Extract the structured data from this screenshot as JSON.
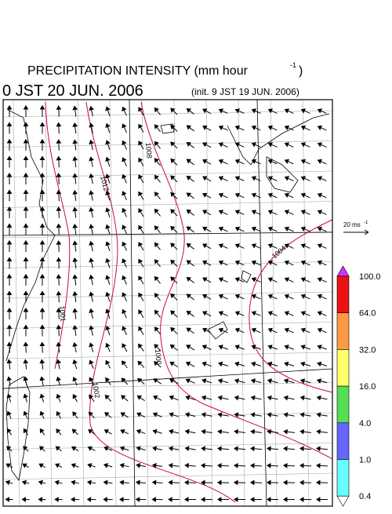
{
  "header": {
    "title": "PRECIPITATION INTENSITY (mm hour",
    "title_exponent": "-1",
    "title_close": ")",
    "valid_time": "0 JST 20 JUN. 2006",
    "init_time": "(init. 9 JST 19 JUN. 2006)"
  },
  "map": {
    "contour_labels": [
      "1012",
      "1008",
      "1004",
      "1001",
      "1000",
      "1002"
    ]
  },
  "wind_legend": {
    "label": "20 ms",
    "exponent": "-1"
  },
  "colorbar": {
    "labels": [
      "100.0",
      "64.0",
      "32.0",
      "16.0",
      "4.0",
      "1.0",
      "0.4"
    ],
    "colors": [
      "#cc33ff",
      "#ee1111",
      "#ff9944",
      "#ffff66",
      "#55dd55",
      "#6666ff",
      "#66ffff",
      "#ffffff"
    ]
  }
}
